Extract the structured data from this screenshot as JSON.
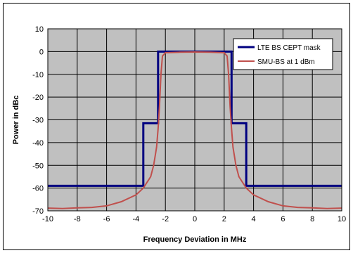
{
  "chart_data": {
    "type": "line",
    "title": "",
    "xlabel": "Frequency Deviation  in MHz",
    "ylabel": "Power  in dBc",
    "xlim": [
      -10,
      10
    ],
    "ylim": [
      -70,
      10
    ],
    "x_ticks": [
      -10,
      -8,
      -6,
      -4,
      -2,
      0,
      2,
      4,
      6,
      8,
      10
    ],
    "y_ticks": [
      10,
      0,
      -10,
      -20,
      -30,
      -40,
      -50,
      -60,
      -70
    ],
    "grid": true,
    "legend_position": "top-right",
    "background_color": "#c0c0c0",
    "series": [
      {
        "name": "LTE BS CEPT  mask",
        "color": "#000080",
        "x": [
          -10,
          -3.5,
          -3.5,
          -2.5,
          -2.5,
          2.5,
          2.5,
          3.5,
          3.5,
          10
        ],
        "y": [
          -59,
          -59,
          -31.5,
          -31.5,
          0,
          0,
          -31.5,
          -31.5,
          -59,
          -59
        ]
      },
      {
        "name": "SMU-BS at 1 dBm",
        "color": "#c0504d",
        "x": [
          -10,
          -9,
          -8,
          -7,
          -6,
          -5,
          -4,
          -3.5,
          -3,
          -2.8,
          -2.6,
          -2.5,
          -2.4,
          -2.3,
          -2.2,
          -2,
          -1,
          0,
          1,
          2,
          2.2,
          2.3,
          2.4,
          2.5,
          2.6,
          2.8,
          3,
          3.5,
          4,
          5,
          6,
          7,
          8,
          9,
          10
        ],
        "y": [
          -68.8,
          -69,
          -68.7,
          -68.5,
          -67.8,
          -66,
          -63,
          -60,
          -55,
          -50,
          -42,
          -34,
          -24,
          -10,
          -2,
          -0.5,
          -0.3,
          -0.2,
          -0.3,
          -0.5,
          -2,
          -10,
          -24,
          -34,
          -42,
          -50,
          -55,
          -60,
          -63,
          -66,
          -67.8,
          -68.5,
          -68.7,
          -69,
          -68.8
        ]
      }
    ]
  }
}
